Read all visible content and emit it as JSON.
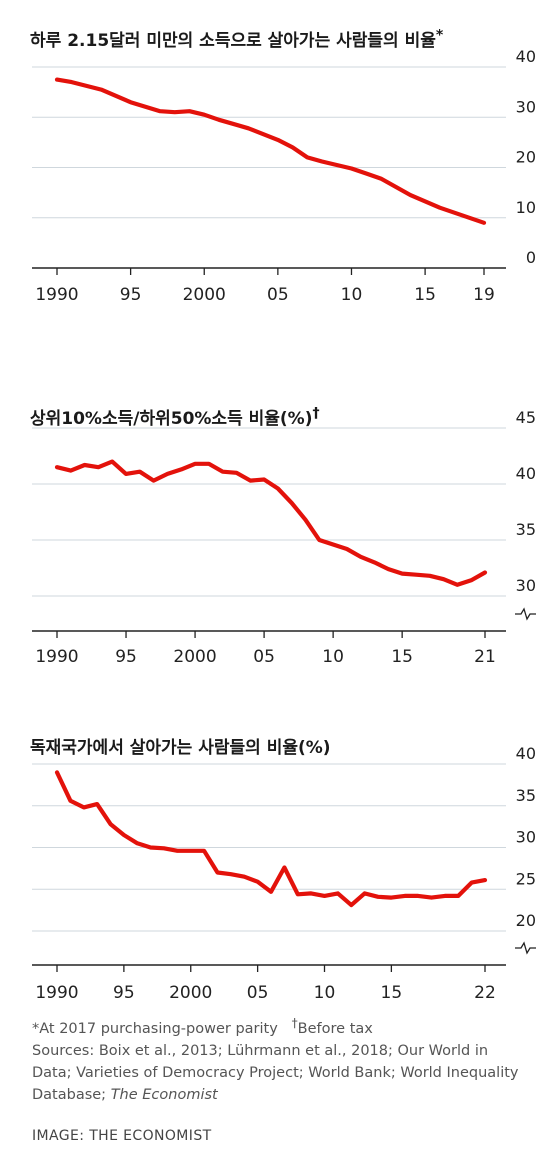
{
  "chart_data": [
    {
      "type": "line",
      "title": "하루 2.15달러 미만의 소득으로 살아가는 사람들의 비율",
      "title_marker": "*",
      "x": [
        1990,
        1991,
        1993,
        1995,
        1997,
        1998,
        1999,
        2000,
        2001,
        2003,
        2005,
        2006,
        2007,
        2008,
        2010,
        2011,
        2012,
        2014,
        2016,
        2019
      ],
      "series": [
        {
          "values": [
            37.5,
            37.0,
            35.5,
            33.0,
            31.2,
            31.0,
            31.2,
            30.5,
            29.5,
            27.8,
            25.5,
            24.0,
            22.0,
            21.2,
            19.8,
            18.8,
            17.8,
            14.5,
            12.0,
            9.0
          ]
        }
      ],
      "line_color": "#e3120b",
      "ylim": [
        0,
        40
      ],
      "yticks": [
        "0",
        "10",
        "20",
        "30",
        "40"
      ],
      "xticks": [
        "1990",
        "95",
        "2000",
        "05",
        "10",
        "15",
        "19"
      ],
      "xtick_values": [
        1990,
        1995,
        2000,
        2005,
        2010,
        2015,
        2019
      ],
      "grid": true,
      "axis_break": false
    },
    {
      "type": "line",
      "title": "상위10%소득/하위50%소득 비율(%)",
      "title_marker": "†",
      "x": [
        1990,
        1991,
        1992,
        1993,
        1994,
        1995,
        1996,
        1997,
        1998,
        1999,
        2000,
        2001,
        2002,
        2003,
        2004,
        2005,
        2006,
        2007,
        2008,
        2009,
        2010,
        2011,
        2012,
        2013,
        2014,
        2015,
        2016,
        2017,
        2018,
        2019,
        2020,
        2021
      ],
      "series": [
        {
          "values": [
            41.5,
            41.2,
            41.7,
            41.5,
            42.0,
            40.9,
            41.1,
            40.3,
            40.9,
            41.3,
            41.8,
            41.8,
            41.1,
            41.0,
            40.3,
            40.4,
            39.6,
            38.3,
            36.8,
            35.0,
            34.6,
            34.2,
            33.5,
            33.0,
            32.4,
            32.0,
            31.9,
            31.8,
            31.5,
            31.0,
            31.4,
            32.1
          ]
        }
      ],
      "line_color": "#e3120b",
      "ylim": [
        30,
        45
      ],
      "yticks": [
        "30",
        "35",
        "40",
        "45"
      ],
      "xticks": [
        "1990",
        "95",
        "2000",
        "05",
        "10",
        "15",
        "21"
      ],
      "xtick_values": [
        1990,
        1995,
        2000,
        2005,
        2010,
        2015,
        2021
      ],
      "grid": true,
      "axis_break": true
    },
    {
      "type": "line",
      "title": "독재국가에서 살아가는 사람들의 비율(%)",
      "title_marker": "",
      "x": [
        1990,
        1991,
        1992,
        1993,
        1994,
        1995,
        1996,
        1997,
        1998,
        1999,
        2000,
        2001,
        2002,
        2003,
        2004,
        2005,
        2006,
        2007,
        2008,
        2009,
        2010,
        2011,
        2012,
        2013,
        2014,
        2015,
        2016,
        2017,
        2018,
        2019,
        2020,
        2021,
        2022
      ],
      "series": [
        {
          "values": [
            39.0,
            35.6,
            34.8,
            35.2,
            32.8,
            31.5,
            30.5,
            30.0,
            29.9,
            29.6,
            29.6,
            29.6,
            27.0,
            26.8,
            26.5,
            25.9,
            24.7,
            27.6,
            24.4,
            24.5,
            24.2,
            24.5,
            23.1,
            24.5,
            24.1,
            24.0,
            24.2,
            24.2,
            24.0,
            24.2,
            24.2,
            25.8,
            26.1
          ]
        }
      ],
      "line_color": "#e3120b",
      "ylim": [
        20,
        40
      ],
      "yticks": [
        "20",
        "25",
        "30",
        "35",
        "40"
      ],
      "xticks": [
        "1990",
        "95",
        "2000",
        "05",
        "10",
        "15",
        "22"
      ],
      "xtick_values": [
        1990,
        1995,
        2000,
        2005,
        2010,
        2015,
        2022
      ],
      "grid": true,
      "axis_break": true
    }
  ],
  "footnote": {
    "note1": "*At 2017 purchasing-power parity",
    "note2_marker": "†",
    "note2": "Before tax",
    "sources_prefix": "Sources: Boix et al., 2013; Lührmann et al., 2018; Our World in Data; Varieties of Democracy Project; World Bank; World Inequality Database; ",
    "sources_italic": "The Economist"
  },
  "credit": "IMAGE: THE ECONOMIST"
}
